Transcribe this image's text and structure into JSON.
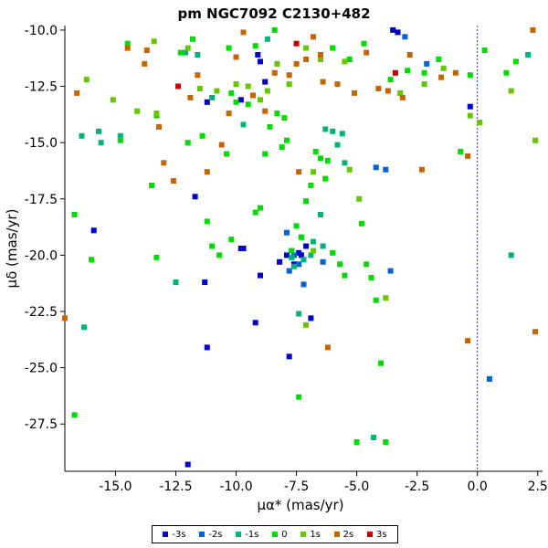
{
  "chart_data": {
    "type": "scatter",
    "title": "pm NGC7092  C2130+482",
    "xlabel": "μα* (mas/yr)",
    "ylabel": "μδ (mas/yr)",
    "xlim": [
      -17.1,
      2.7
    ],
    "ylim": [
      -29.6,
      -9.8
    ],
    "xticks": [
      -15.0,
      -12.5,
      -10.0,
      -7.5,
      -5.0,
      -2.5,
      0.0,
      2.5
    ],
    "yticks": [
      -10.0,
      -12.5,
      -15.0,
      -17.5,
      -20.0,
      -22.5,
      -25.0,
      -27.5
    ],
    "xtick_labels": [
      "-15.0",
      "-12.5",
      "-10.0",
      "-7.5",
      "-5.0",
      "-2.5",
      "0.0",
      "2.5"
    ],
    "ytick_labels": [
      "-10.0",
      "-12.5",
      "-15.0",
      "-17.5",
      "-20.0",
      "-22.5",
      "-25.0",
      "-27.5"
    ],
    "reference_line_x": 0.0,
    "grid": false,
    "legend_position": "bottom-center",
    "series": [
      {
        "name": "-3s",
        "color": "#0000c8",
        "points": [
          [
            -12.0,
            -29.3
          ],
          [
            -15.9,
            -18.9
          ],
          [
            -11.2,
            -24.1
          ],
          [
            -11.3,
            -21.2
          ],
          [
            -11.7,
            -17.4
          ],
          [
            -9.7,
            -19.7
          ],
          [
            -9.8,
            -19.7
          ],
          [
            -9.2,
            -23.0
          ],
          [
            -9.0,
            -20.9
          ],
          [
            -8.2,
            -20.3
          ],
          [
            -7.8,
            -24.5
          ],
          [
            -7.7,
            -19.8
          ],
          [
            -7.4,
            -19.9
          ],
          [
            -7.3,
            -20.0
          ],
          [
            -7.1,
            -19.6
          ],
          [
            -7.6,
            -20.4
          ],
          [
            -7.9,
            -20.0
          ],
          [
            -6.9,
            -22.8
          ],
          [
            -8.8,
            -12.3
          ],
          [
            -9.1,
            -11.1
          ],
          [
            -9.0,
            -11.4
          ],
          [
            -3.5,
            -10.0
          ],
          [
            -3.3,
            -10.1
          ],
          [
            -11.2,
            -13.2
          ],
          [
            -0.3,
            -13.4
          ],
          [
            -9.8,
            -13.1
          ]
        ]
      },
      {
        "name": "-2s",
        "color": "#0064d2",
        "points": [
          [
            -3.6,
            -20.7
          ],
          [
            -7.6,
            -20.0
          ],
          [
            -7.4,
            -20.4
          ],
          [
            -6.4,
            -20.3
          ],
          [
            -2.1,
            -11.5
          ],
          [
            -3.0,
            -10.3
          ],
          [
            -4.2,
            -16.1
          ],
          [
            -7.9,
            -19.0
          ],
          [
            -7.8,
            -20.7
          ],
          [
            -7.2,
            -21.3
          ],
          [
            0.5,
            -25.5
          ],
          [
            -3.8,
            -16.2
          ]
        ]
      },
      {
        "name": "-1s",
        "color": "#00b478",
        "points": [
          [
            -16.4,
            -14.7
          ],
          [
            -16.3,
            -23.2
          ],
          [
            -15.6,
            -15.0
          ],
          [
            -14.8,
            -14.7
          ],
          [
            -12.5,
            -21.2
          ],
          [
            -12.1,
            -11.0
          ],
          [
            -11.6,
            -11.1
          ],
          [
            -11.0,
            -13.0
          ],
          [
            -9.7,
            -14.2
          ],
          [
            -8.7,
            -10.4
          ],
          [
            -7.7,
            -20.1
          ],
          [
            -7.6,
            -20.5
          ],
          [
            -7.3,
            -19.2
          ],
          [
            -7.2,
            -20.2
          ],
          [
            -6.9,
            -20.0
          ],
          [
            -6.8,
            -19.4
          ],
          [
            -6.5,
            -18.2
          ],
          [
            -6.4,
            -19.6
          ],
          [
            -6.0,
            -14.5
          ],
          [
            -5.8,
            -15.1
          ],
          [
            -5.5,
            -15.9
          ],
          [
            -4.3,
            -28.1
          ],
          [
            -7.4,
            -22.6
          ],
          [
            1.4,
            -20.0
          ],
          [
            2.1,
            -11.1
          ],
          [
            -15.7,
            -14.5
          ],
          [
            -6.3,
            -14.4
          ],
          [
            -5.6,
            -14.6
          ]
        ]
      },
      {
        "name": "0",
        "color": "#00dc00",
        "points": [
          [
            -16.7,
            -27.1
          ],
          [
            -16.7,
            -18.2
          ],
          [
            -16.0,
            -20.2
          ],
          [
            -14.8,
            -14.9
          ],
          [
            -14.5,
            -10.6
          ],
          [
            -13.3,
            -20.1
          ],
          [
            -13.3,
            -13.8
          ],
          [
            -13.5,
            -16.9
          ],
          [
            -12.3,
            -11.0
          ],
          [
            -12.0,
            -15.0
          ],
          [
            -11.4,
            -14.7
          ],
          [
            -11.2,
            -18.5
          ],
          [
            -11.0,
            -19.6
          ],
          [
            -10.7,
            -20.0
          ],
          [
            -10.4,
            -15.5
          ],
          [
            -10.2,
            -19.3
          ],
          [
            -10.0,
            -13.2
          ],
          [
            -10.2,
            -12.8
          ],
          [
            -9.5,
            -13.3
          ],
          [
            -9.2,
            -18.1
          ],
          [
            -9.0,
            -17.9
          ],
          [
            -8.8,
            -15.5
          ],
          [
            -8.6,
            -14.3
          ],
          [
            -8.3,
            -13.7
          ],
          [
            -8.1,
            -15.2
          ],
          [
            -8.0,
            -13.9
          ],
          [
            -7.9,
            -14.9
          ],
          [
            -7.7,
            -19.8
          ],
          [
            -7.5,
            -18.7
          ],
          [
            -7.3,
            -19.2
          ],
          [
            -7.4,
            -26.3
          ],
          [
            -7.1,
            -17.6
          ],
          [
            -6.9,
            -16.9
          ],
          [
            -6.7,
            -15.4
          ],
          [
            -6.5,
            -15.7
          ],
          [
            -6.3,
            -16.6
          ],
          [
            -6.2,
            -15.8
          ],
          [
            -6.0,
            -19.9
          ],
          [
            -5.7,
            -20.4
          ],
          [
            -5.5,
            -20.9
          ],
          [
            -5.3,
            -11.3
          ],
          [
            -5.0,
            -28.3
          ],
          [
            -4.8,
            -18.6
          ],
          [
            -4.6,
            -20.4
          ],
          [
            -4.4,
            -21.0
          ],
          [
            -4.2,
            -22.0
          ],
          [
            -4.0,
            -24.8
          ],
          [
            -3.8,
            -28.3
          ],
          [
            -3.6,
            -12.2
          ],
          [
            -2.9,
            -11.8
          ],
          [
            -2.2,
            -11.9
          ],
          [
            -1.6,
            -11.3
          ],
          [
            -0.7,
            -15.4
          ],
          [
            -0.3,
            -12.0
          ],
          [
            0.3,
            -10.9
          ],
          [
            1.2,
            -11.9
          ],
          [
            1.6,
            -11.4
          ],
          [
            -8.4,
            -10.0
          ],
          [
            -9.2,
            -10.7
          ],
          [
            -10.3,
            -10.8
          ],
          [
            -11.8,
            -10.4
          ],
          [
            -6.0,
            -10.8
          ],
          [
            -4.7,
            -10.6
          ]
        ]
      },
      {
        "name": "1s",
        "color": "#64c800",
        "points": [
          [
            -16.2,
            -12.2
          ],
          [
            -15.1,
            -13.1
          ],
          [
            -14.1,
            -13.6
          ],
          [
            -13.3,
            -13.7
          ],
          [
            -13.4,
            -10.5
          ],
          [
            -12.0,
            -10.8
          ],
          [
            -11.5,
            -12.6
          ],
          [
            -10.8,
            -12.7
          ],
          [
            -10.0,
            -12.4
          ],
          [
            -9.5,
            -12.5
          ],
          [
            -9.0,
            -13.1
          ],
          [
            -8.7,
            -12.7
          ],
          [
            -8.3,
            -11.5
          ],
          [
            -7.8,
            -12.4
          ],
          [
            -7.1,
            -10.8
          ],
          [
            -6.8,
            -16.3
          ],
          [
            -6.5,
            -11.3
          ],
          [
            -5.5,
            -11.4
          ],
          [
            -5.3,
            -16.2
          ],
          [
            -4.9,
            -17.5
          ],
          [
            -3.8,
            -21.9
          ],
          [
            -3.2,
            -12.8
          ],
          [
            -2.2,
            -12.4
          ],
          [
            -1.4,
            -11.7
          ],
          [
            -0.3,
            -13.8
          ],
          [
            0.1,
            -14.1
          ],
          [
            1.4,
            -12.7
          ],
          [
            2.4,
            -14.9
          ],
          [
            -7.1,
            -23.1
          ],
          [
            -6.8,
            -19.8
          ]
        ]
      },
      {
        "name": "2s",
        "color": "#c86400",
        "points": [
          [
            -17.1,
            -22.8
          ],
          [
            -16.6,
            -12.8
          ],
          [
            -14.5,
            -10.8
          ],
          [
            -13.8,
            -11.5
          ],
          [
            -13.2,
            -14.3
          ],
          [
            -13.0,
            -15.9
          ],
          [
            -12.6,
            -16.7
          ],
          [
            -11.9,
            -13.0
          ],
          [
            -11.6,
            -12.0
          ],
          [
            -11.2,
            -16.3
          ],
          [
            -10.6,
            -15.1
          ],
          [
            -10.3,
            -13.7
          ],
          [
            -10.0,
            -11.2
          ],
          [
            -9.3,
            -12.9
          ],
          [
            -8.8,
            -13.6
          ],
          [
            -8.4,
            -11.9
          ],
          [
            -7.8,
            -12.0
          ],
          [
            -7.5,
            -11.5
          ],
          [
            -7.1,
            -11.3
          ],
          [
            -6.8,
            -10.3
          ],
          [
            -6.4,
            -12.3
          ],
          [
            -6.2,
            -24.1
          ],
          [
            -5.8,
            -12.4
          ],
          [
            -5.1,
            -12.8
          ],
          [
            -4.6,
            -11.0
          ],
          [
            -4.1,
            -12.6
          ],
          [
            -3.7,
            -12.7
          ],
          [
            -3.1,
            -13.0
          ],
          [
            -2.8,
            -11.1
          ],
          [
            -2.3,
            -16.2
          ],
          [
            -1.5,
            -12.1
          ],
          [
            -0.9,
            -11.9
          ],
          [
            -0.4,
            -15.6
          ],
          [
            -0.4,
            -23.8
          ],
          [
            2.4,
            -23.4
          ],
          [
            2.3,
            -10.0
          ],
          [
            -13.7,
            -10.9
          ],
          [
            -7.4,
            -16.3
          ],
          [
            -9.7,
            -10.1
          ],
          [
            -6.5,
            -11.1
          ]
        ]
      },
      {
        "name": "3s",
        "color": "#c80000",
        "points": [
          [
            -12.4,
            -12.5
          ],
          [
            -7.5,
            -10.6
          ],
          [
            -3.4,
            -11.9
          ]
        ]
      }
    ]
  }
}
